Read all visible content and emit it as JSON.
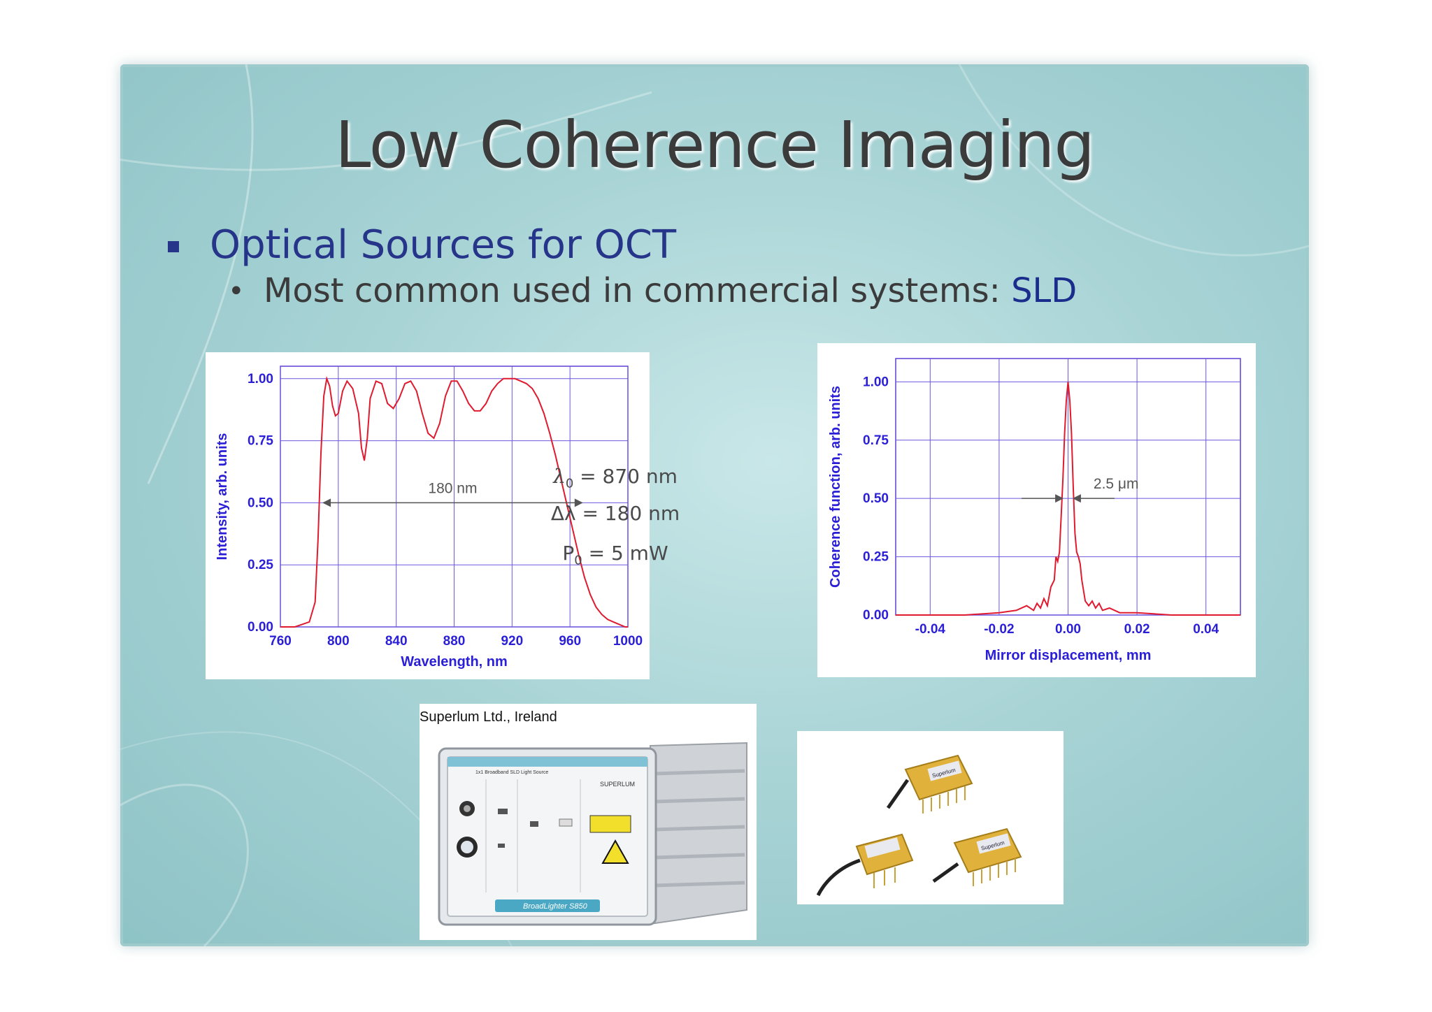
{
  "slide": {
    "title": "Low Coherence Imaging",
    "bullet1": "Optical Sources for OCT",
    "bullet2_prefix": "Most common used in commercial systems: ",
    "bullet2_highlight": "SLD",
    "bullet2_dot": "•",
    "colors": {
      "heading": "#3b3b3b",
      "bullet": "#26358a",
      "curve": "#e01b2f",
      "axis_text": "#2a1fd6"
    }
  },
  "params": {
    "lambda0": "λ0 = 870 nm",
    "lambda0_sym": "λ",
    "lambda0_sub": "0",
    "lambda0_rest": " = 870 nm",
    "dlambda": "Δλ = 180 nm",
    "p0_sym": "P",
    "p0_sub": "0",
    "p0_rest": " = 5 mW"
  },
  "chart_data": [
    {
      "type": "line",
      "xlabel": "Wavelength, nm",
      "ylabel": "Intensity, arb. units",
      "xlim": [
        760,
        1000
      ],
      "ylim": [
        0,
        1.05
      ],
      "xticks": [
        "760",
        "800",
        "840",
        "880",
        "920",
        "960",
        "1000"
      ],
      "yticks": [
        "0.00",
        "0.25",
        "0.50",
        "0.75",
        "1.00"
      ],
      "grid": true,
      "annotation": "180 nm",
      "annotation_span": [
        789,
        969
      ],
      "annotation_y": 0.5,
      "x": [
        760,
        770,
        780,
        784,
        786,
        788,
        790,
        792,
        794,
        796,
        798,
        800,
        803,
        806,
        810,
        814,
        816,
        818,
        820,
        822,
        826,
        830,
        834,
        838,
        842,
        846,
        850,
        854,
        858,
        862,
        866,
        870,
        874,
        878,
        882,
        886,
        890,
        894,
        898,
        902,
        906,
        910,
        914,
        918,
        922,
        926,
        930,
        934,
        938,
        942,
        946,
        950,
        954,
        958,
        962,
        966,
        970,
        974,
        978,
        982,
        986,
        990,
        994,
        998,
        1000
      ],
      "y": [
        0.0,
        0.0,
        0.02,
        0.1,
        0.35,
        0.7,
        0.93,
        1.0,
        0.97,
        0.89,
        0.85,
        0.86,
        0.95,
        0.99,
        0.96,
        0.86,
        0.72,
        0.67,
        0.76,
        0.92,
        0.99,
        0.98,
        0.9,
        0.88,
        0.92,
        0.98,
        0.99,
        0.95,
        0.86,
        0.78,
        0.76,
        0.82,
        0.93,
        0.99,
        0.99,
        0.95,
        0.9,
        0.87,
        0.87,
        0.9,
        0.95,
        0.98,
        1.0,
        1.0,
        1.0,
        0.99,
        0.98,
        0.96,
        0.92,
        0.86,
        0.78,
        0.69,
        0.59,
        0.49,
        0.39,
        0.29,
        0.2,
        0.13,
        0.08,
        0.05,
        0.03,
        0.02,
        0.01,
        0.0,
        0.0
      ]
    },
    {
      "type": "line",
      "xlabel": "Mirror displacement, mm",
      "ylabel": "Coherence function, arb. units",
      "xlim": [
        -0.05,
        0.05
      ],
      "ylim": [
        0,
        1.1
      ],
      "xticks": [
        "-0.04",
        "-0.02",
        "0.00",
        "0.02",
        "0.04"
      ],
      "yticks": [
        "0.00",
        "0.25",
        "0.50",
        "0.75",
        "1.00"
      ],
      "grid": true,
      "annotation": "2.5 μm",
      "x": [
        -0.05,
        -0.03,
        -0.02,
        -0.015,
        -0.012,
        -0.01,
        -0.009,
        -0.008,
        -0.007,
        -0.006,
        -0.005,
        -0.004,
        -0.0035,
        -0.003,
        -0.0025,
        -0.002,
        -0.0015,
        -0.001,
        -0.0005,
        0.0,
        0.0005,
        0.001,
        0.0015,
        0.002,
        0.0025,
        0.003,
        0.0035,
        0.004,
        0.005,
        0.006,
        0.007,
        0.008,
        0.009,
        0.01,
        0.012,
        0.015,
        0.02,
        0.03,
        0.05
      ],
      "y": [
        0.0,
        0.0,
        0.01,
        0.02,
        0.04,
        0.02,
        0.05,
        0.03,
        0.07,
        0.04,
        0.12,
        0.15,
        0.25,
        0.23,
        0.27,
        0.42,
        0.58,
        0.78,
        0.92,
        1.0,
        0.92,
        0.78,
        0.55,
        0.35,
        0.27,
        0.25,
        0.22,
        0.15,
        0.06,
        0.04,
        0.06,
        0.03,
        0.05,
        0.02,
        0.03,
        0.01,
        0.01,
        0.0,
        0.0
      ]
    }
  ],
  "photos": {
    "caption": "Superlum Ltd., Ireland",
    "device_header": "1x1 Broadband SLD Light Source",
    "device_brand": "SUPERLUM",
    "device_model": "BroadLighter S850",
    "module_label": "Superlum"
  }
}
